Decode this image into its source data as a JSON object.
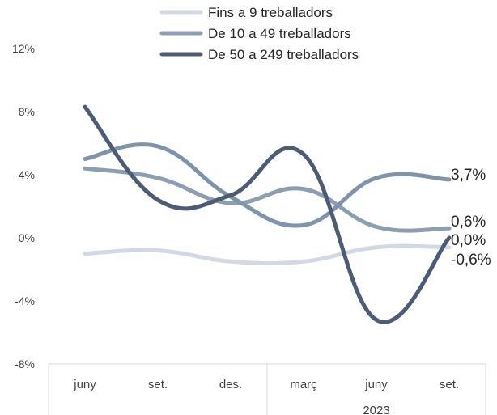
{
  "chart_data": {
    "type": "line",
    "categories": [
      "juny",
      "set.",
      "des.",
      "març",
      "juny",
      "set."
    ],
    "year_group_label": "2023",
    "ylim": [
      -8,
      12
    ],
    "yticks": [
      -8,
      -4,
      0,
      4,
      8,
      12
    ],
    "ytick_labels": [
      "-8%",
      "-4%",
      "0%",
      "4%",
      "8%",
      "12%"
    ],
    "grid": false,
    "legend_position": "top",
    "series": [
      {
        "name": "Fins a 9 treballadors",
        "color": "#d3d9e2",
        "values": [
          -1.0,
          -0.8,
          -1.5,
          -1.5,
          -0.6,
          -0.6
        ],
        "end_label": "-0,6%"
      },
      {
        "name": "De 10 a 49 treballadors",
        "color": "#8d9db2",
        "values": [
          4.4,
          3.8,
          2.2,
          3.1,
          0.7,
          0.6
        ],
        "end_label": "0,6%"
      },
      {
        "name": "De 50 a 249 treballadors",
        "color": "#4d5c74",
        "values": [
          8.3,
          2.4,
          2.7,
          5.3,
          -5.2,
          0.0
        ],
        "end_label": "0,0%"
      },
      {
        "name": "",
        "color": "#7f93ab",
        "values": [
          5.0,
          5.8,
          2.6,
          0.8,
          3.8,
          3.7
        ],
        "end_label": "3,7%"
      }
    ]
  }
}
